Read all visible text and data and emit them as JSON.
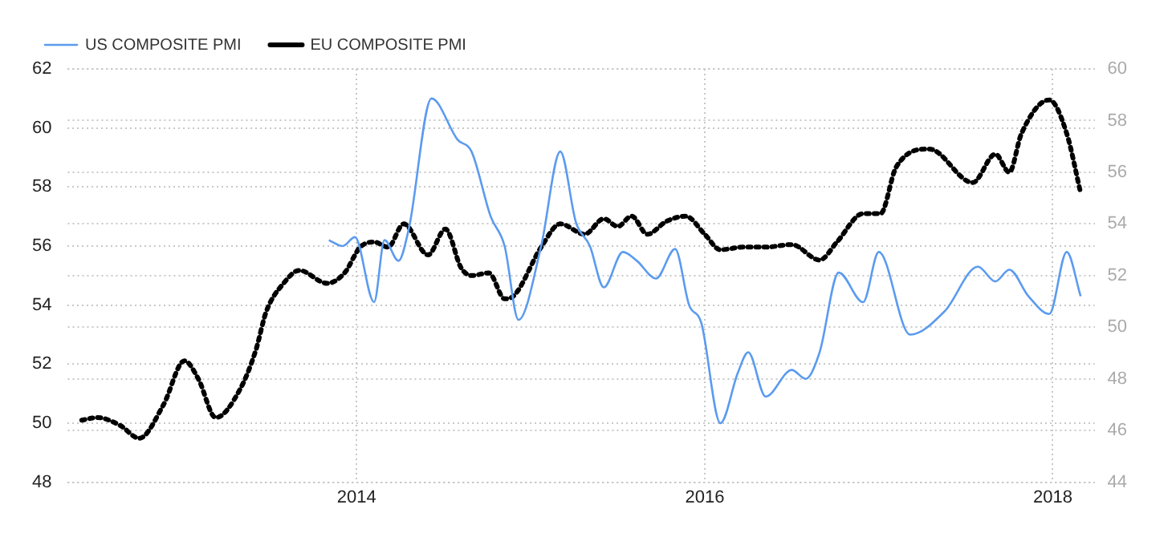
{
  "chart_data": {
    "type": "line",
    "xlim": [
      2012.34,
      2018.24
    ],
    "xticks": [
      2014,
      2016,
      2018
    ],
    "ylim": [
      48,
      62
    ],
    "yticks": [
      48,
      50,
      52,
      54,
      56,
      58,
      60,
      62
    ],
    "y2lim": [
      44,
      60
    ],
    "y2ticks": [
      44,
      46,
      48,
      50,
      52,
      54,
      56,
      58,
      60
    ],
    "grid": true,
    "legend": "top left",
    "marker": "none",
    "series": [
      {
        "name": "US COMPOSITE PMI",
        "color": "#5b9bef",
        "line_style": "solid",
        "x": [
          2013.84,
          2013.92,
          2013.99,
          2014.1,
          2014.16,
          2014.24,
          2014.3,
          2014.43,
          2014.58,
          2014.66,
          2014.77,
          2014.85,
          2014.93,
          2015.06,
          2015.17,
          2015.26,
          2015.34,
          2015.42,
          2015.53,
          2015.61,
          2015.72,
          2015.83,
          2015.91,
          2015.98,
          2016.09,
          2016.19,
          2016.25,
          2016.35,
          2016.5,
          2016.58,
          2016.66,
          2016.77,
          2016.91,
          2017.0,
          2017.18,
          2017.38,
          2017.57,
          2017.67,
          2017.75,
          2017.86,
          2017.98,
          2018.08,
          2018.16
        ],
        "values": [
          56.2,
          56.0,
          56.3,
          54.1,
          56.2,
          55.5,
          56.6,
          61.0,
          59.6,
          59.2,
          57.0,
          56.0,
          53.5,
          56.0,
          59.2,
          56.8,
          56.0,
          54.6,
          55.8,
          55.5,
          54.9,
          55.9,
          54.0,
          53.4,
          50.0,
          51.7,
          52.4,
          50.9,
          51.8,
          51.5,
          52.4,
          55.1,
          54.1,
          55.8,
          53.0,
          53.8,
          55.3,
          54.8,
          55.2,
          54.3,
          53.7,
          55.8,
          54.3
        ]
      },
      {
        "name": "EU COMPOSITE PMI",
        "color": "#000000",
        "line_style": "dotted",
        "axis": "y2",
        "x": [
          2012.42,
          2012.51,
          2012.64,
          2012.75,
          2012.89,
          2013.01,
          2013.09,
          2013.19,
          2013.33,
          2013.42,
          2013.48,
          2013.58,
          2013.67,
          2013.83,
          2013.93,
          2014.02,
          2014.1,
          2014.18,
          2014.27,
          2014.41,
          2014.51,
          2014.6,
          2014.66,
          2014.76,
          2014.85,
          2014.9,
          2015.06,
          2015.17,
          2015.31,
          2015.42,
          2015.5,
          2015.58,
          2015.67,
          2015.78,
          2015.89,
          2016.0,
          2016.09,
          2016.22,
          2016.35,
          2016.5,
          2016.66,
          2016.76,
          2016.91,
          2017.01,
          2017.1,
          2017.29,
          2017.54,
          2017.67,
          2017.75,
          2017.82,
          2017.98,
          2018.08,
          2018.16
        ],
        "values": [
          46.4,
          46.5,
          46.2,
          45.7,
          47.0,
          48.7,
          48.0,
          46.5,
          47.6,
          49.1,
          50.6,
          51.7,
          52.2,
          51.7,
          52.1,
          53.1,
          53.3,
          53.1,
          54.0,
          52.8,
          53.8,
          52.3,
          52.0,
          52.1,
          51.1,
          51.2,
          53.1,
          54.0,
          53.6,
          54.2,
          53.9,
          54.3,
          53.6,
          54.1,
          54.3,
          53.6,
          53.0,
          53.1,
          53.1,
          53.2,
          52.6,
          53.3,
          54.4,
          54.4,
          56.2,
          56.9,
          55.6,
          56.7,
          56.0,
          57.5,
          58.8,
          57.5,
          55.2
        ]
      }
    ]
  }
}
